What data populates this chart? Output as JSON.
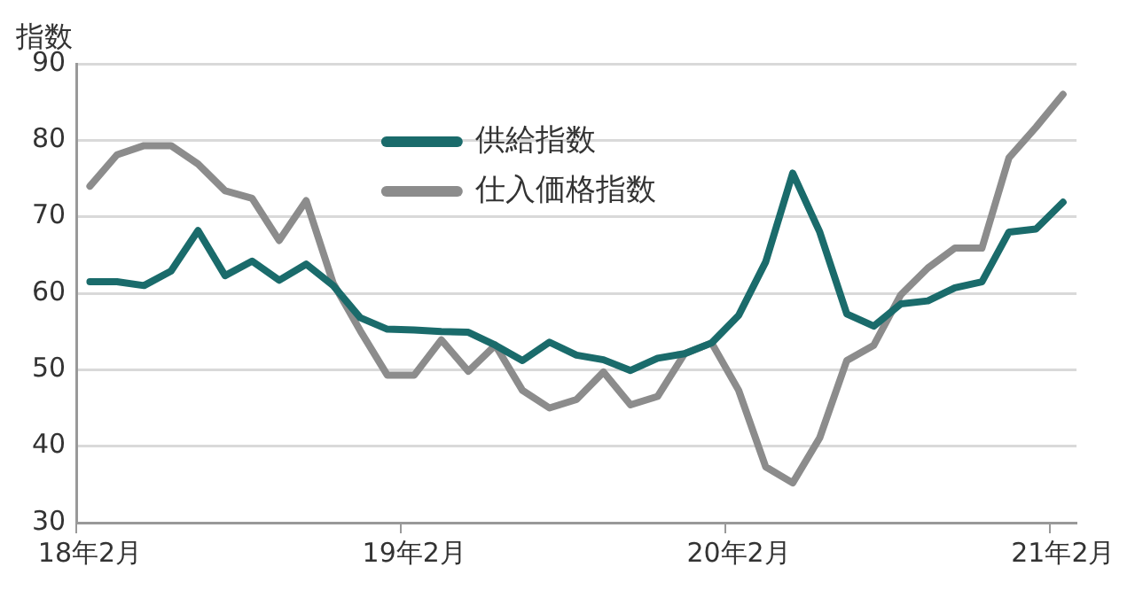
{
  "chart_data": {
    "type": "line",
    "ylabel": "指数",
    "categories": [
      "18年2月",
      null,
      null,
      null,
      null,
      null,
      null,
      null,
      null,
      null,
      null,
      null,
      "19年2月",
      null,
      null,
      null,
      null,
      null,
      null,
      null,
      null,
      null,
      null,
      null,
      "20年2月",
      null,
      null,
      null,
      null,
      null,
      null,
      null,
      null,
      null,
      null,
      null,
      "21年2月"
    ],
    "series": [
      {
        "name": "供給指数",
        "color": "#1a6b6b",
        "values": [
          61.5,
          61.5,
          61.0,
          62.9,
          68.2,
          62.3,
          64.2,
          61.7,
          63.8,
          61.0,
          56.8,
          55.3,
          55.2,
          55.0,
          54.9,
          53.2,
          51.2,
          53.6,
          51.9,
          51.3,
          49.9,
          51.5,
          52.1,
          53.5,
          57.1,
          64.1,
          75.7,
          68.0,
          57.3,
          55.7,
          58.6,
          59.0,
          60.7,
          61.5,
          68.0,
          68.4,
          71.9
        ]
      },
      {
        "name": "仕入価格指数",
        "color": "#8c8c8c",
        "values": [
          74.0,
          78.1,
          79.3,
          79.3,
          76.9,
          73.4,
          72.4,
          66.9,
          72.1,
          61.3,
          55.1,
          49.3,
          49.3,
          53.9,
          49.8,
          53.2,
          47.3,
          45.0,
          46.1,
          49.7,
          45.4,
          46.5,
          52.1,
          53.5,
          47.3,
          37.3,
          35.2,
          41.1,
          51.2,
          53.2,
          59.8,
          63.3,
          65.9,
          65.9,
          77.7,
          81.7,
          86.0
        ]
      }
    ],
    "ylim": [
      30,
      90
    ],
    "yticks": [
      30,
      40,
      50,
      60,
      70,
      80,
      90
    ],
    "grid": "y",
    "legend": "top",
    "marker": "none",
    "line_style": "solid"
  }
}
